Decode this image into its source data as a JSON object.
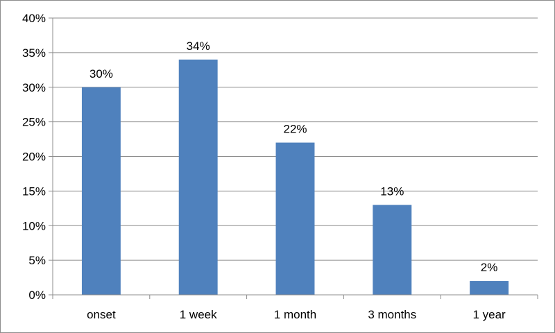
{
  "chart_data": {
    "type": "bar",
    "title": "",
    "xlabel": "",
    "ylabel": "",
    "categories": [
      "onset",
      "1 week",
      "1 month",
      "3 months",
      "1 year"
    ],
    "values": [
      30,
      34,
      22,
      13,
      2
    ],
    "data_labels": [
      "30%",
      "34%",
      "22%",
      "13%",
      "2%"
    ],
    "ylim": [
      0,
      40
    ],
    "y_ticks": [
      0,
      5,
      10,
      15,
      20,
      25,
      30,
      35,
      40
    ],
    "y_tick_labels": [
      "0%",
      "5%",
      "10%",
      "15%",
      "20%",
      "25%",
      "30%",
      "35%",
      "40%"
    ],
    "grid": true,
    "legend": "none",
    "colors": {
      "bar": "#4f81bd",
      "grid": "#8c8c8c",
      "axis": "#8c8c8c",
      "text": "#000000"
    }
  }
}
